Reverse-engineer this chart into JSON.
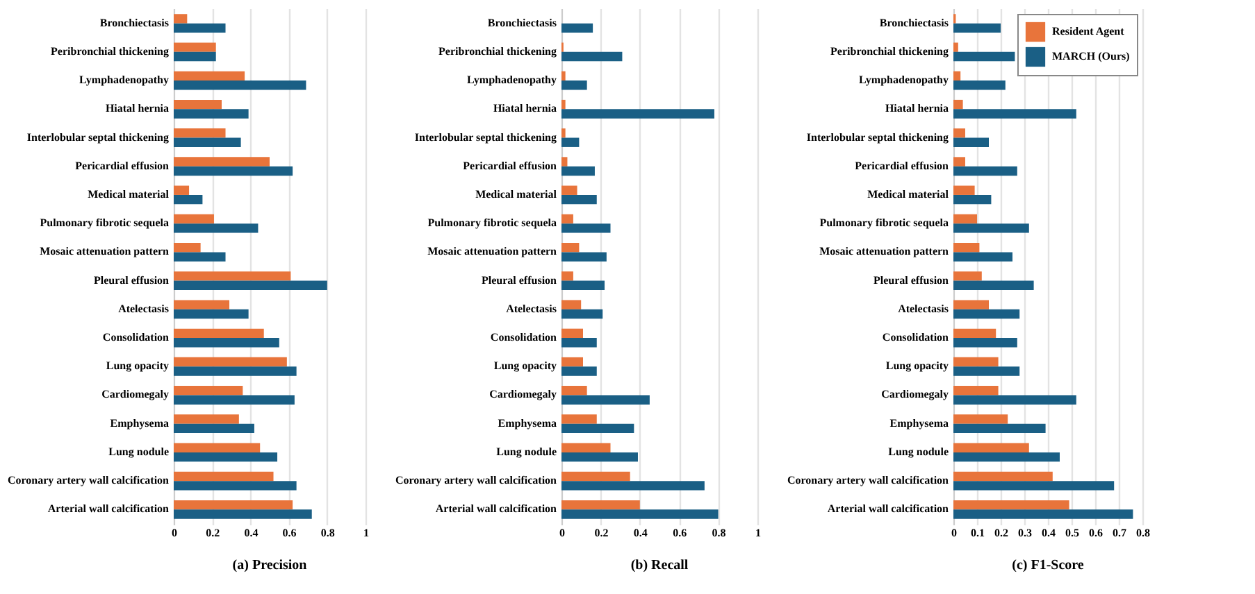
{
  "chart_data": [
    {
      "type": "bar",
      "orientation": "horizontal",
      "title": "(a) Precision",
      "grid": "x",
      "categories": [
        "Bronchiectasis",
        "Peribronchial thickening",
        "Lymphadenopathy",
        "Hiatal hernia",
        "Interlobular septal thickening",
        "Pericardial effusion",
        "Medical material",
        "Pulmonary fibrotic sequela",
        "Mosaic attenuation pattern",
        "Pleural effusion",
        "Atelectasis",
        "Consolidation",
        "Lung opacity",
        "Cardiomegaly",
        "Emphysema",
        "Lung nodule",
        "Coronary artery wall calcification",
        "Arterial wall calcification"
      ],
      "series": [
        {
          "color": "#e8743b",
          "values": [
            0.07,
            0.22,
            0.37,
            0.25,
            0.27,
            0.5,
            0.08,
            0.21,
            0.14,
            0.61,
            0.29,
            0.47,
            0.59,
            0.36,
            0.34,
            0.45,
            0.52,
            0.62
          ]
        },
        {
          "color": "#1a5f85",
          "values": [
            0.27,
            0.22,
            0.69,
            0.39,
            0.35,
            0.62,
            0.15,
            0.44,
            0.27,
            0.8,
            0.39,
            0.55,
            0.64,
            0.63,
            0.42,
            0.54,
            0.64,
            0.72
          ]
        }
      ],
      "xlim": [
        0,
        1
      ],
      "xticks": [
        0,
        0.2,
        0.4,
        0.6,
        0.8,
        1
      ]
    },
    {
      "type": "bar",
      "orientation": "horizontal",
      "title": "(b) Recall",
      "grid": "x",
      "categories": [
        "Bronchiectasis",
        "Peribronchial thickening",
        "Lymphadenopathy",
        "Hiatal hernia",
        "Interlobular septal thickening",
        "Pericardial effusion",
        "Medical material",
        "Pulmonary fibrotic sequela",
        "Mosaic attenuation pattern",
        "Pleural effusion",
        "Atelectasis",
        "Consolidation",
        "Lung opacity",
        "Cardiomegaly",
        "Emphysema",
        "Lung nodule",
        "Coronary artery wall calcification",
        "Arterial wall calcification"
      ],
      "series": [
        {
          "color": "#e8743b",
          "values": [
            0.0,
            0.01,
            0.02,
            0.02,
            0.02,
            0.03,
            0.08,
            0.06,
            0.09,
            0.06,
            0.1,
            0.11,
            0.11,
            0.13,
            0.18,
            0.25,
            0.35,
            0.4
          ]
        },
        {
          "color": "#1a5f85",
          "values": [
            0.16,
            0.31,
            0.13,
            0.78,
            0.09,
            0.17,
            0.18,
            0.25,
            0.23,
            0.22,
            0.21,
            0.18,
            0.18,
            0.45,
            0.37,
            0.39,
            0.73,
            0.8
          ]
        }
      ],
      "xlim": [
        0,
        1
      ],
      "xticks": [
        0,
        0.2,
        0.4,
        0.6,
        0.8,
        1
      ]
    },
    {
      "type": "bar",
      "orientation": "horizontal",
      "title": "(c) F1-Score",
      "grid": "x",
      "legend": "top right",
      "categories": [
        "Bronchiectasis",
        "Peribronchial thickening",
        "Lymphadenopathy",
        "Hiatal hernia",
        "Interlobular septal thickening",
        "Pericardial effusion",
        "Medical material",
        "Pulmonary fibrotic sequela",
        "Mosaic attenuation pattern",
        "Pleural effusion",
        "Atelectasis",
        "Consolidation",
        "Lung opacity",
        "Cardiomegaly",
        "Emphysema",
        "Lung nodule",
        "Coronary artery wall calcification",
        "Arterial wall calcification"
      ],
      "series": [
        {
          "name": "Resident Agent",
          "color": "#e8743b",
          "values": [
            0.01,
            0.02,
            0.03,
            0.04,
            0.05,
            0.05,
            0.09,
            0.1,
            0.11,
            0.12,
            0.15,
            0.18,
            0.19,
            0.19,
            0.23,
            0.32,
            0.42,
            0.49
          ]
        },
        {
          "name": "MARCH (Ours)",
          "color": "#1a5f85",
          "values": [
            0.2,
            0.26,
            0.22,
            0.52,
            0.15,
            0.27,
            0.16,
            0.32,
            0.25,
            0.34,
            0.28,
            0.27,
            0.28,
            0.52,
            0.39,
            0.45,
            0.68,
            0.76
          ]
        }
      ],
      "xlim": [
        0,
        0.8
      ],
      "xticks": [
        0,
        0.1,
        0.2,
        0.3,
        0.4,
        0.5,
        0.6,
        0.7,
        0.8
      ]
    }
  ]
}
